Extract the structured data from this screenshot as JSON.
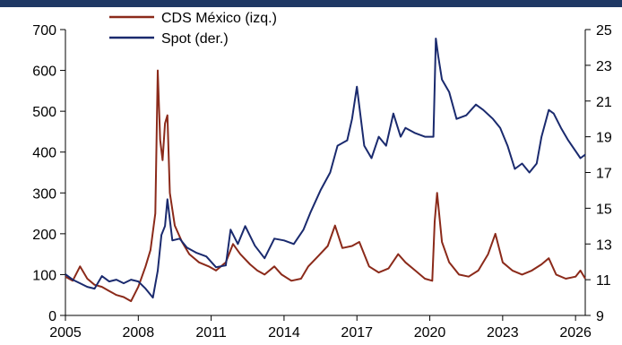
{
  "chart_data": {
    "type": "line",
    "title": "",
    "xlabel": "",
    "ylabel_left": "",
    "ylabel_right": "",
    "xlim": [
      2005,
      2026.4
    ],
    "ylim_left": [
      0,
      700
    ],
    "ylim_right": [
      9,
      25
    ],
    "x_ticks": [
      2005,
      2008,
      2011,
      2014,
      2017,
      2020,
      2023,
      2026
    ],
    "y_left_ticks": [
      0,
      100,
      200,
      300,
      400,
      500,
      600,
      700
    ],
    "y_right_ticks": [
      9,
      11,
      13,
      15,
      17,
      19,
      21,
      23,
      25
    ],
    "grid": false,
    "legend_position": "top-center",
    "series": [
      {
        "name": "CDS México (izq.)",
        "axis": "left",
        "color": "#8b2a1a",
        "points": [
          [
            2005.0,
            95
          ],
          [
            2005.3,
            85
          ],
          [
            2005.6,
            120
          ],
          [
            2005.9,
            90
          ],
          [
            2006.2,
            75
          ],
          [
            2006.5,
            70
          ],
          [
            2006.8,
            60
          ],
          [
            2007.1,
            50
          ],
          [
            2007.4,
            45
          ],
          [
            2007.7,
            35
          ],
          [
            2008.0,
            70
          ],
          [
            2008.3,
            120
          ],
          [
            2008.5,
            160
          ],
          [
            2008.7,
            250
          ],
          [
            2008.8,
            600
          ],
          [
            2008.9,
            430
          ],
          [
            2009.0,
            380
          ],
          [
            2009.1,
            470
          ],
          [
            2009.2,
            490
          ],
          [
            2009.3,
            300
          ],
          [
            2009.5,
            220
          ],
          [
            2009.8,
            180
          ],
          [
            2010.1,
            150
          ],
          [
            2010.5,
            130
          ],
          [
            2010.9,
            120
          ],
          [
            2011.2,
            110
          ],
          [
            2011.6,
            130
          ],
          [
            2011.9,
            175
          ],
          [
            2012.2,
            150
          ],
          [
            2012.6,
            125
          ],
          [
            2012.9,
            110
          ],
          [
            2013.2,
            100
          ],
          [
            2013.6,
            120
          ],
          [
            2013.9,
            100
          ],
          [
            2014.3,
            85
          ],
          [
            2014.7,
            90
          ],
          [
            2015.0,
            120
          ],
          [
            2015.4,
            145
          ],
          [
            2015.8,
            170
          ],
          [
            2016.1,
            220
          ],
          [
            2016.4,
            165
          ],
          [
            2016.8,
            170
          ],
          [
            2017.1,
            180
          ],
          [
            2017.5,
            120
          ],
          [
            2017.9,
            105
          ],
          [
            2018.3,
            115
          ],
          [
            2018.7,
            150
          ],
          [
            2019.0,
            130
          ],
          [
            2019.4,
            110
          ],
          [
            2019.8,
            90
          ],
          [
            2020.1,
            85
          ],
          [
            2020.2,
            230
          ],
          [
            2020.3,
            300
          ],
          [
            2020.5,
            180
          ],
          [
            2020.8,
            130
          ],
          [
            2021.2,
            100
          ],
          [
            2021.6,
            95
          ],
          [
            2022.0,
            110
          ],
          [
            2022.4,
            150
          ],
          [
            2022.7,
            200
          ],
          [
            2023.0,
            130
          ],
          [
            2023.4,
            110
          ],
          [
            2023.8,
            100
          ],
          [
            2024.2,
            110
          ],
          [
            2024.6,
            125
          ],
          [
            2024.9,
            140
          ],
          [
            2025.2,
            100
          ],
          [
            2025.6,
            90
          ],
          [
            2026.0,
            95
          ],
          [
            2026.2,
            110
          ],
          [
            2026.4,
            90
          ]
        ]
      },
      {
        "name": "Spot (der.)",
        "axis": "right",
        "color": "#1a2a6e",
        "points": [
          [
            2005.0,
            11.3
          ],
          [
            2005.3,
            11.0
          ],
          [
            2005.6,
            10.8
          ],
          [
            2005.9,
            10.6
          ],
          [
            2006.2,
            10.5
          ],
          [
            2006.5,
            11.2
          ],
          [
            2006.8,
            10.9
          ],
          [
            2007.1,
            11.0
          ],
          [
            2007.4,
            10.8
          ],
          [
            2007.7,
            11.0
          ],
          [
            2008.0,
            10.9
          ],
          [
            2008.3,
            10.5
          ],
          [
            2008.6,
            10.0
          ],
          [
            2008.8,
            11.5
          ],
          [
            2008.95,
            13.5
          ],
          [
            2009.1,
            14.0
          ],
          [
            2009.2,
            15.5
          ],
          [
            2009.4,
            13.2
          ],
          [
            2009.7,
            13.3
          ],
          [
            2010.0,
            12.8
          ],
          [
            2010.4,
            12.5
          ],
          [
            2010.8,
            12.3
          ],
          [
            2011.2,
            11.7
          ],
          [
            2011.6,
            11.8
          ],
          [
            2011.8,
            13.8
          ],
          [
            2012.1,
            13.0
          ],
          [
            2012.4,
            14.0
          ],
          [
            2012.8,
            12.9
          ],
          [
            2013.2,
            12.2
          ],
          [
            2013.6,
            13.3
          ],
          [
            2014.0,
            13.2
          ],
          [
            2014.4,
            13.0
          ],
          [
            2014.8,
            13.8
          ],
          [
            2015.1,
            14.8
          ],
          [
            2015.5,
            16.0
          ],
          [
            2015.9,
            17.0
          ],
          [
            2016.2,
            18.5
          ],
          [
            2016.6,
            18.8
          ],
          [
            2016.8,
            20.0
          ],
          [
            2017.0,
            21.8
          ],
          [
            2017.3,
            18.5
          ],
          [
            2017.6,
            17.8
          ],
          [
            2017.9,
            19.0
          ],
          [
            2018.2,
            18.5
          ],
          [
            2018.5,
            20.3
          ],
          [
            2018.8,
            19.0
          ],
          [
            2019.0,
            19.5
          ],
          [
            2019.4,
            19.2
          ],
          [
            2019.8,
            19.0
          ],
          [
            2020.15,
            19.0
          ],
          [
            2020.25,
            24.5
          ],
          [
            2020.35,
            23.5
          ],
          [
            2020.5,
            22.2
          ],
          [
            2020.8,
            21.5
          ],
          [
            2021.1,
            20.0
          ],
          [
            2021.5,
            20.2
          ],
          [
            2021.9,
            20.8
          ],
          [
            2022.2,
            20.5
          ],
          [
            2022.6,
            20.0
          ],
          [
            2022.9,
            19.5
          ],
          [
            2023.2,
            18.5
          ],
          [
            2023.5,
            17.2
          ],
          [
            2023.8,
            17.5
          ],
          [
            2024.1,
            17.0
          ],
          [
            2024.4,
            17.5
          ],
          [
            2024.6,
            19.0
          ],
          [
            2024.9,
            20.5
          ],
          [
            2025.1,
            20.3
          ],
          [
            2025.4,
            19.5
          ],
          [
            2025.7,
            18.8
          ],
          [
            2026.0,
            18.2
          ],
          [
            2026.2,
            17.8
          ],
          [
            2026.4,
            18.0
          ]
        ]
      }
    ]
  }
}
